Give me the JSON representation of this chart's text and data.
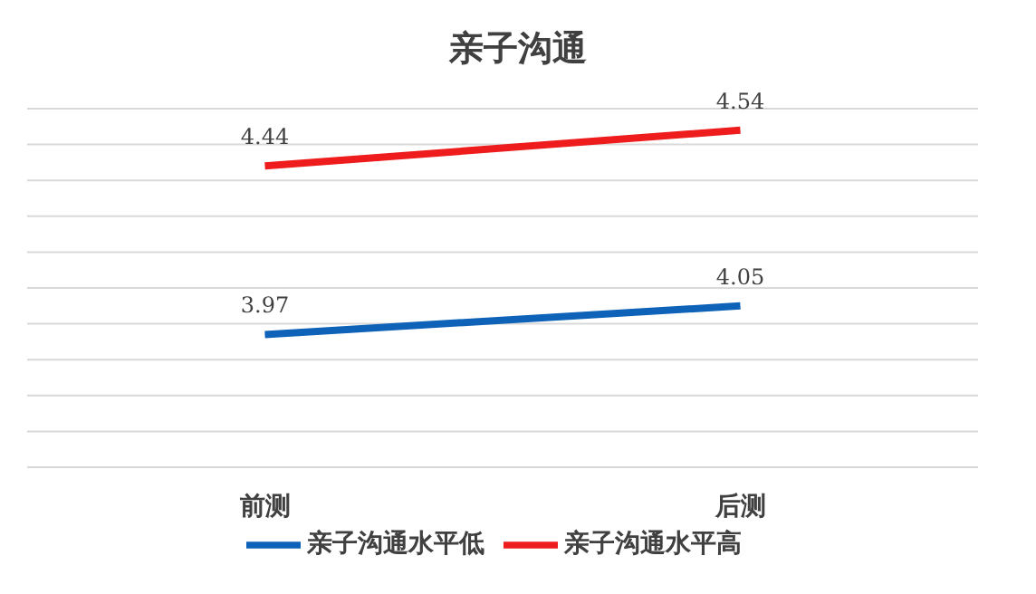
{
  "chart_data": {
    "type": "line",
    "title": "亲子沟通",
    "categories": [
      "前测",
      "后测"
    ],
    "series": [
      {
        "name": "亲子沟通水平低",
        "color": "#0e63b8",
        "values": [
          3.97,
          4.05
        ]
      },
      {
        "name": "亲子沟通水平高",
        "color": "#ee1c1c",
        "values": [
          4.44,
          4.54
        ]
      }
    ],
    "ylim": [
      3.6,
      4.6
    ],
    "yticks": [
      {
        "value": 3.6,
        "label": null
      },
      {
        "value": 3.7,
        "label": null
      },
      {
        "value": 3.8,
        "label": null
      },
      {
        "value": 3.9,
        "label": null
      },
      {
        "value": 4.0,
        "label": null
      },
      {
        "value": 4.1,
        "label": null
      },
      {
        "value": 4.2,
        "label": null
      },
      {
        "value": 4.3,
        "label": null
      },
      {
        "value": 4.4,
        "label": null
      },
      {
        "value": 4.5,
        "label": null
      },
      {
        "value": 4.6,
        "label": null
      }
    ],
    "tick_labels": "x",
    "grid": "y",
    "legend": "bottom",
    "data_labels": true,
    "marker": "none",
    "line_style": "solid"
  }
}
